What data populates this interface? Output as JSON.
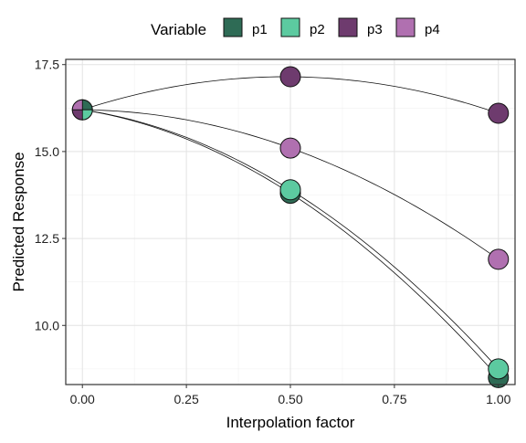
{
  "chart_data": {
    "type": "scatter",
    "xlabel": "Interpolation factor",
    "ylabel": "Predicted Response",
    "xlim": [
      -0.04,
      1.04
    ],
    "ylim": [
      8.3,
      17.65
    ],
    "x_ticks": [
      0.0,
      0.25,
      0.5,
      0.75,
      1.0
    ],
    "x_tick_labels": [
      "0.00",
      "0.25",
      "0.50",
      "0.75",
      "1.00"
    ],
    "y_ticks": [
      10.0,
      12.5,
      15.0,
      17.5
    ],
    "y_tick_labels": [
      "10.0",
      "12.5",
      "15.0",
      "17.5"
    ],
    "grid": true,
    "legend": {
      "title": "Variable",
      "position": "top",
      "entries": [
        {
          "label": "p1",
          "color": "#2e6b55"
        },
        {
          "label": "p2",
          "color": "#5ccaa0"
        },
        {
          "label": "p3",
          "color": "#6e3b6e"
        },
        {
          "label": "p4",
          "color": "#b070b0"
        }
      ]
    },
    "series": [
      {
        "name": "p1",
        "color": "#2e6b55",
        "x": [
          0.0,
          0.5,
          1.0
        ],
        "y": [
          16.2,
          13.8,
          8.5
        ]
      },
      {
        "name": "p2",
        "color": "#5ccaa0",
        "x": [
          0.0,
          0.5,
          1.0
        ],
        "y": [
          16.2,
          13.9,
          8.75
        ]
      },
      {
        "name": "p3",
        "color": "#6e3b6e",
        "x": [
          0.0,
          0.5,
          1.0
        ],
        "y": [
          16.2,
          17.15,
          16.1
        ]
      },
      {
        "name": "p4",
        "color": "#b070b0",
        "x": [
          0.0,
          0.5,
          1.0
        ],
        "y": [
          16.2,
          15.1,
          11.9
        ]
      }
    ]
  }
}
